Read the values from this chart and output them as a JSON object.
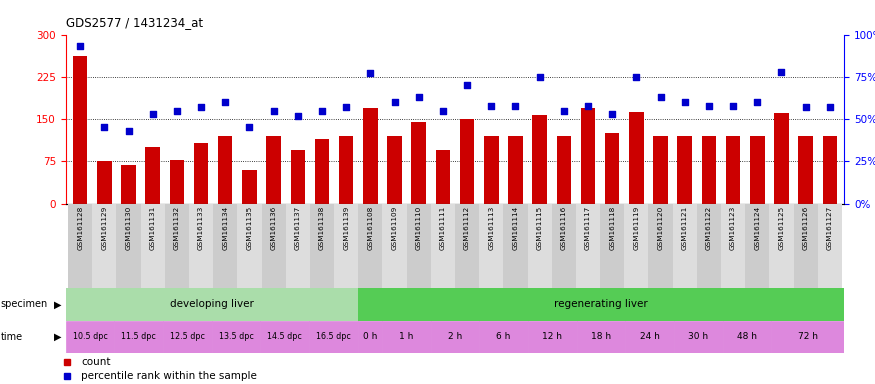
{
  "title": "GDS2577 / 1431234_at",
  "x_labels": [
    "GSM161128",
    "GSM161129",
    "GSM161130",
    "GSM161131",
    "GSM161132",
    "GSM161133",
    "GSM161134",
    "GSM161135",
    "GSM161136",
    "GSM161137",
    "GSM161138",
    "GSM161139",
    "GSM161108",
    "GSM161109",
    "GSM161110",
    "GSM161111",
    "GSM161112",
    "GSM161113",
    "GSM161114",
    "GSM161115",
    "GSM161116",
    "GSM161117",
    "GSM161118",
    "GSM161119",
    "GSM161120",
    "GSM161121",
    "GSM161122",
    "GSM161123",
    "GSM161124",
    "GSM161125",
    "GSM161126",
    "GSM161127"
  ],
  "bar_values": [
    262,
    76,
    68,
    100,
    78,
    108,
    120,
    60,
    120,
    95,
    115,
    120,
    170,
    120,
    145,
    95,
    150,
    120,
    120,
    158,
    120,
    170,
    125,
    163,
    120,
    120,
    120,
    120,
    120,
    160,
    120,
    120
  ],
  "dot_values_pct": [
    93,
    45,
    43,
    53,
    55,
    57,
    60,
    45,
    55,
    52,
    55,
    57,
    77,
    60,
    63,
    55,
    70,
    58,
    58,
    75,
    55,
    58,
    53,
    75,
    63,
    60,
    58,
    58,
    60,
    78,
    57,
    57
  ],
  "bar_color": "#cc0000",
  "dot_color": "#0000cc",
  "y_left_ticks": [
    0,
    75,
    150,
    225,
    300
  ],
  "y_right_ticks": [
    0,
    25,
    50,
    75,
    100
  ],
  "y_right_labels": [
    "0%",
    "25%",
    "50%",
    "75%",
    "100%"
  ],
  "hline_values": [
    75,
    150,
    225
  ],
  "time_labels_dpc": [
    "10.5 dpc",
    "11.5 dpc",
    "12.5 dpc",
    "13.5 dpc",
    "14.5 dpc",
    "16.5 dpc"
  ],
  "time_groups_regen": [
    {
      "label": "0 h",
      "count": 1
    },
    {
      "label": "1 h",
      "count": 2
    },
    {
      "label": "2 h",
      "count": 2
    },
    {
      "label": "6 h",
      "count": 2
    },
    {
      "label": "12 h",
      "count": 2
    },
    {
      "label": "18 h",
      "count": 2
    },
    {
      "label": "24 h",
      "count": 2
    },
    {
      "label": "30 h",
      "count": 2
    },
    {
      "label": "48 h",
      "count": 2
    },
    {
      "label": "72 h",
      "count": 3
    }
  ],
  "spec_dev_color": "#aaddaa",
  "spec_reg_color": "#55cc55",
  "time_dpc_color": "#dd88dd",
  "time_regen_color": "#dd88dd",
  "legend_count_color": "#cc0000",
  "legend_pct_color": "#0000cc"
}
